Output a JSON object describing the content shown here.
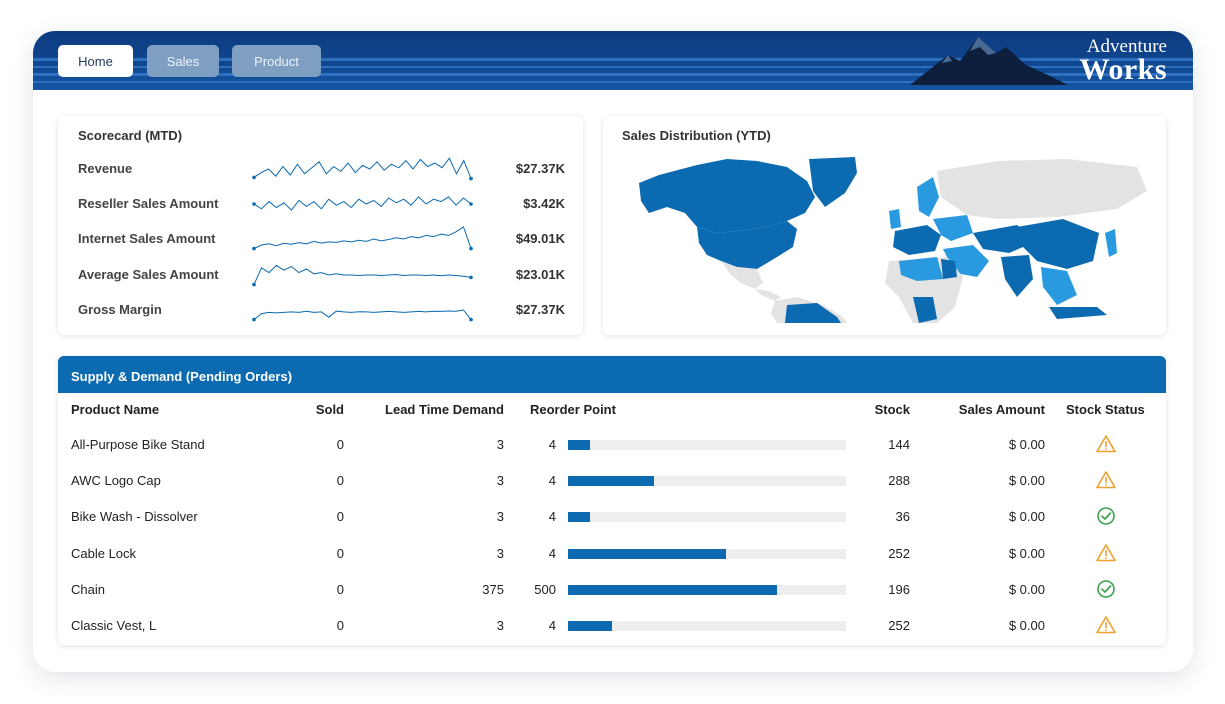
{
  "nav": {
    "tabs": [
      {
        "label": "Home",
        "active": true
      },
      {
        "label": "Sales",
        "active": false
      },
      {
        "label": "Product",
        "active": false
      }
    ]
  },
  "logo": {
    "line1": "Adventure",
    "line2": "Works"
  },
  "scorecard": {
    "title": "Scorecard (MTD)",
    "rows": [
      {
        "label": "Revenue",
        "value": "$27.37K",
        "trend": [
          0.15,
          0.35,
          0.5,
          0.2,
          0.6,
          0.25,
          0.7,
          0.3,
          0.55,
          0.8,
          0.3,
          0.6,
          0.4,
          0.75,
          0.35,
          0.65,
          0.5,
          0.8,
          0.45,
          0.7,
          0.55,
          0.85,
          0.5,
          0.9,
          0.6,
          0.75,
          0.55,
          0.95,
          0.3,
          0.85,
          0.1
        ]
      },
      {
        "label": "Reseller Sales Amount",
        "value": "$3.42K",
        "trend": [
          0.5,
          0.3,
          0.6,
          0.35,
          0.55,
          0.25,
          0.65,
          0.4,
          0.6,
          0.3,
          0.7,
          0.45,
          0.6,
          0.35,
          0.7,
          0.5,
          0.65,
          0.4,
          0.75,
          0.55,
          0.7,
          0.45,
          0.8,
          0.5,
          0.7,
          0.6,
          0.8,
          0.45,
          0.75,
          0.5
        ]
      },
      {
        "label": "Internet Sales Amount",
        "value": "$49.01K",
        "trend": [
          0.1,
          0.25,
          0.3,
          0.22,
          0.32,
          0.28,
          0.35,
          0.3,
          0.4,
          0.33,
          0.38,
          0.36,
          0.42,
          0.38,
          0.45,
          0.4,
          0.5,
          0.42,
          0.48,
          0.55,
          0.5,
          0.6,
          0.55,
          0.65,
          0.6,
          0.7,
          0.65,
          0.8,
          1.0,
          0.1
        ]
      },
      {
        "label": "Average Sales Amount",
        "value": "$23.01K",
        "trend": [
          0.1,
          0.8,
          0.6,
          0.9,
          0.7,
          0.85,
          0.6,
          0.75,
          0.55,
          0.6,
          0.5,
          0.55,
          0.5,
          0.5,
          0.48,
          0.5,
          0.5,
          0.48,
          0.5,
          0.52,
          0.48,
          0.5,
          0.5,
          0.48,
          0.5,
          0.47,
          0.5,
          0.48,
          0.45,
          0.4
        ]
      },
      {
        "label": "Gross Margin",
        "value": "$27.37K",
        "trend": [
          0.1,
          0.35,
          0.4,
          0.38,
          0.4,
          0.42,
          0.4,
          0.45,
          0.4,
          0.42,
          0.2,
          0.45,
          0.42,
          0.4,
          0.43,
          0.42,
          0.4,
          0.42,
          0.44,
          0.42,
          0.4,
          0.42,
          0.44,
          0.42,
          0.45,
          0.44,
          0.46,
          0.45,
          0.5,
          0.1
        ]
      }
    ]
  },
  "sales_distribution": {
    "title": "Sales Distribution (YTD)"
  },
  "supply": {
    "title": "Supply & Demand (Pending Orders)",
    "columns": [
      "Product Name",
      "Sold",
      "Lead Time Demand",
      "Reorder Point",
      "Stock",
      "Sales Amount",
      "Stock Status"
    ],
    "rows": [
      {
        "product": "All-Purpose Bike Stand",
        "sold": "0",
        "lead": "3",
        "reorder": "4",
        "stock": "144",
        "stock_level": 0.08,
        "amount": "$ 0.00",
        "status": "warning-icon"
      },
      {
        "product": "AWC Logo Cap",
        "sold": "0",
        "lead": "3",
        "reorder": "4",
        "stock": "288",
        "stock_level": 0.31,
        "amount": "$ 0.00",
        "status": "warning-icon"
      },
      {
        "product": "Bike Wash - Dissolver",
        "sold": "0",
        "lead": "3",
        "reorder": "4",
        "stock": "36",
        "stock_level": 0.08,
        "amount": "$ 0.00",
        "status": "check-icon"
      },
      {
        "product": "Cable Lock",
        "sold": "0",
        "lead": "3",
        "reorder": "4",
        "stock": "252",
        "stock_level": 0.57,
        "amount": "$ 0.00",
        "status": "warning-icon"
      },
      {
        "product": "Chain",
        "sold": "0",
        "lead": "375",
        "reorder": "500",
        "stock": "196",
        "stock_level": 0.75,
        "amount": "$ 0.00",
        "status": "check-icon"
      },
      {
        "product": "Classic Vest, L",
        "sold": "0",
        "lead": "3",
        "reorder": "4",
        "stock": "252",
        "stock_level": 0.16,
        "amount": "$ 0.00",
        "status": "warning-icon"
      }
    ]
  },
  "colors": {
    "accent": "#0b6ab0",
    "header": "#0f4790",
    "warning": "#f0a030",
    "ok": "#3aa24a",
    "map_dark": "#0b6ab0",
    "map_light": "#2a9ae0",
    "map_none": "#e3e3e3"
  }
}
